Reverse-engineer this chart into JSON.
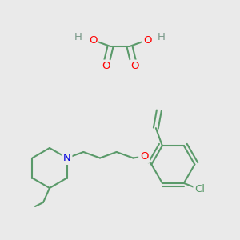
{
  "bg_color": "#eaeaea",
  "bond_color": "#5a9a6a",
  "atom_colors": {
    "O": "#ff0000",
    "N": "#0000dd",
    "Cl": "#5a9a6a",
    "H": "#7a9a8a",
    "C": "#5a9a6a"
  },
  "lw": 1.5,
  "fs": 8.5
}
